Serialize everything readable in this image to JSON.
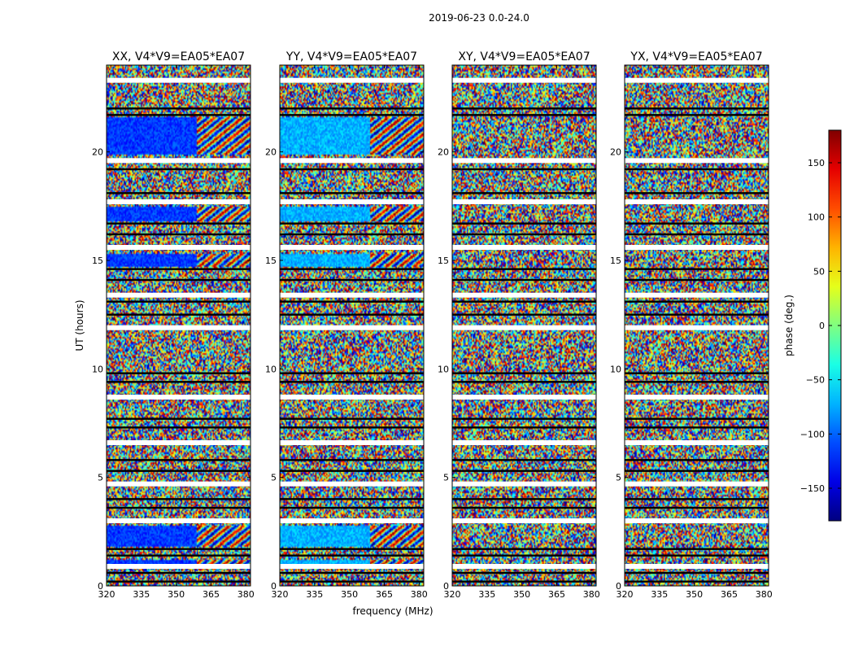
{
  "figure": {
    "suptitle": "2019-06-23 0.0-24.0",
    "xlabel": "frequency (MHz)",
    "ylabel": "UT (hours)"
  },
  "chart_data": {
    "type": "heatmap",
    "title": "2019-06-23 0.0-24.0",
    "xlabel": "frequency (MHz)",
    "ylabel": "UT (hours)",
    "xlim": [
      320,
      382
    ],
    "ylim": [
      0,
      24
    ],
    "x_ticks": [
      320,
      335,
      350,
      365,
      380
    ],
    "y_ticks": [
      0,
      5,
      10,
      15,
      20
    ],
    "panels": [
      {
        "title": "XX, V4*V9=EA05*EA07",
        "coherent_bands": [
          [
            19.9,
            21.6
          ],
          [
            14.7,
            15.3
          ],
          [
            16.8,
            17.5
          ],
          [
            0.9,
            1.2
          ],
          [
            1.8,
            2.8
          ]
        ]
      },
      {
        "title": "YY, V4*V9=EA05*EA07",
        "coherent_bands": [
          [
            19.9,
            21.6
          ],
          [
            14.7,
            15.3
          ],
          [
            16.8,
            17.5
          ],
          [
            0.9,
            1.2
          ],
          [
            1.8,
            2.8
          ]
        ]
      },
      {
        "title": "XY, V4*V9=EA05*EA07",
        "coherent_bands": []
      },
      {
        "title": "YX, V4*V9=EA05*EA07",
        "coherent_bands": []
      }
    ],
    "gap_hours": [
      23.3,
      22.0,
      21.7,
      19.6,
      19.2,
      18.1,
      17.7,
      16.7,
      16.2,
      15.6,
      14.6,
      14.1,
      13.4,
      13.1,
      12.5,
      11.9,
      9.8,
      9.4,
      8.7,
      7.7,
      7.3,
      6.6,
      5.8,
      5.3,
      4.7,
      4.0,
      3.6,
      3.0,
      1.7,
      1.4,
      0.9,
      0.6,
      0.2
    ],
    "colorbar": {
      "label": "phase (deg.)",
      "ticks": [
        -150,
        -100,
        -50,
        0,
        50,
        100,
        150
      ],
      "range": [
        -180,
        180
      ],
      "colormap": "jet"
    }
  }
}
